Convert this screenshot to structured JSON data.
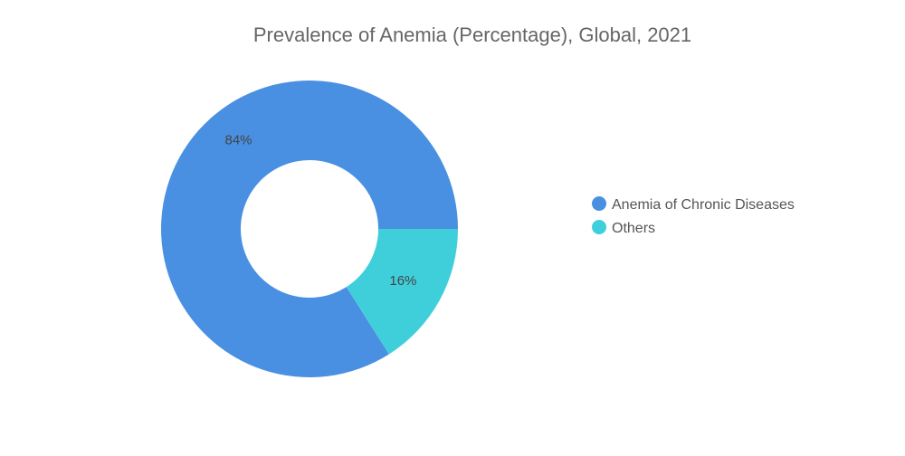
{
  "chart_data": {
    "type": "pie",
    "title": "Prevalence of Anemia (Percentage), Global, 2021",
    "categories": [
      "Anemia of Chronic Diseases",
      "Others"
    ],
    "values": [
      84,
      16
    ],
    "labels": [
      "84%",
      "16%"
    ],
    "colors": [
      "#4a90e2",
      "#3fcfdb"
    ],
    "donut": true,
    "legend_position": "right"
  }
}
